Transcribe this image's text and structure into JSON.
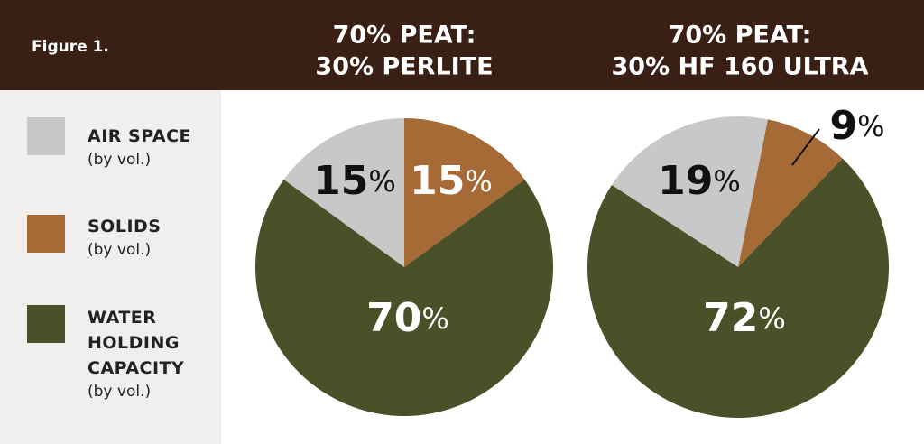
{
  "figure_label": "Figure 1.",
  "legend_notes": [
    "(by vol.)",
    "(by vol.)",
    "(by vol.)"
  ],
  "chart_data": [
    {
      "type": "pie",
      "title": [
        "70% PEAT:",
        "30% PERLITE"
      ],
      "categories": [
        "AIR SPACE",
        "SOLIDS",
        "WATER HOLDING CAPACITY"
      ],
      "values": [
        15,
        15,
        70
      ],
      "value_labels": [
        "15%",
        "15%",
        "70%"
      ],
      "colors": [
        "#c9c8c9",
        "#a66a36",
        "#4a5128"
      ]
    },
    {
      "type": "pie",
      "title": [
        "70% PEAT:",
        "30% HF 160 ULTRA"
      ],
      "categories": [
        "AIR SPACE",
        "SOLIDS",
        "WATER HOLDING CAPACITY"
      ],
      "values": [
        19,
        9,
        72
      ],
      "value_labels": [
        "19%",
        "9%",
        "72%"
      ],
      "colors": [
        "#c9c8c9",
        "#a66a36",
        "#4a5128"
      ]
    }
  ]
}
